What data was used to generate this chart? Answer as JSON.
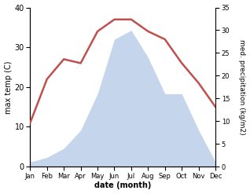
{
  "months": [
    "Jan",
    "Feb",
    "Mar",
    "Apr",
    "May",
    "Jun",
    "Jul",
    "Aug",
    "Sep",
    "Oct",
    "Nov",
    "Dec"
  ],
  "temperature": [
    11,
    22,
    27,
    26,
    34,
    37,
    37,
    34,
    32,
    26,
    21,
    15
  ],
  "precipitation": [
    1,
    2,
    4,
    8,
    16,
    28,
    30,
    24,
    16,
    16,
    8,
    1
  ],
  "temp_color": "#c0504d",
  "precip_color": "#c5d5ec",
  "left_label": "max temp (C)",
  "right_label": "med. precipitation (kg/m2)",
  "xlabel": "date (month)",
  "left_ylim": [
    0,
    40
  ],
  "right_ylim": [
    0,
    35
  ],
  "left_yticks": [
    0,
    10,
    20,
    30,
    40
  ],
  "right_yticks": [
    0,
    5,
    10,
    15,
    20,
    25,
    30,
    35
  ],
  "bg_color": "#ffffff",
  "line_width": 1.8,
  "fig_width": 3.18,
  "fig_height": 2.47,
  "dpi": 100
}
